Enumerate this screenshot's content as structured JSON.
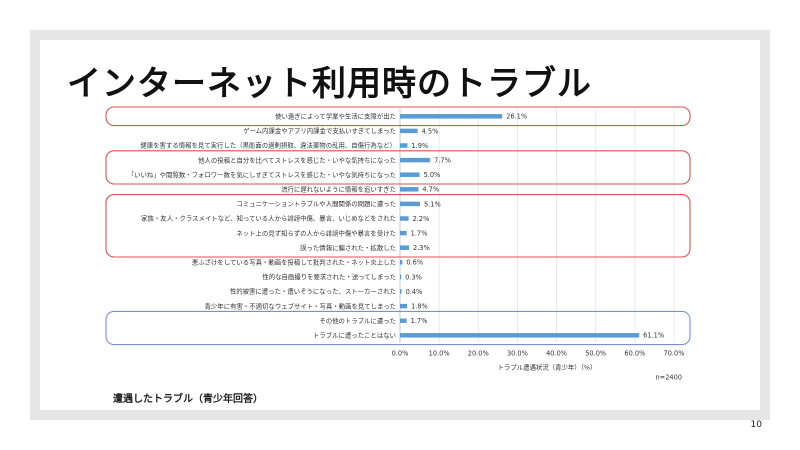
{
  "slide": {
    "title": "インターネット利用時のトラブル",
    "caption": "遭遇したトラブル（青少年回答）",
    "page_number": "10"
  },
  "chart_data": {
    "type": "bar",
    "orientation": "horizontal",
    "categories": [
      "使い過ぎによって学業や生活に支障が出た",
      "ゲーム内課金やアプリ内課金で支払いすぎてしまった",
      "健康を害する情報を見て実行した（黒彫面の過剰摂取、違法薬物の乱用、自傷行為など）",
      "他人の投稿と自分を比べてストレスを感じた・いやな気持ちになった",
      "「いいね」や閲覧数・フォロワー数を気にしすぎてストレスを感じた・いやな気持ちになった",
      "流行に遅れないように情報を追いすぎた",
      "コミュニケーショントラブルや人間関係の問題に遭った",
      "家族・友人・クラスメイトなど、知っている人から誹謗中傷、暴言、いじめなどをされた",
      "ネット上の見ず知らずの人から誹謗中傷や暴言を受けた",
      "誤った情報に騙された・拡散した",
      "悪ふざけをしている写真・動画を投稿して批判された・ネット炎上した",
      "性的な自画撮りを要求された・送ってしまった",
      "性的被害に遭った・遭いそうになった、ストーカーされた",
      "青少年に有害・不適切なウェブサイト・写真・動画を見てしまった",
      "その他のトラブルに遭った",
      "トラブルに遭ったことはない"
    ],
    "values": [
      26.1,
      4.5,
      1.9,
      7.7,
      5.0,
      4.7,
      5.1,
      2.2,
      1.7,
      2.3,
      0.6,
      0.3,
      0.4,
      1.8,
      1.7,
      61.1
    ],
    "value_labels": [
      "26.1%",
      "4.5%",
      "1.9%",
      "7.7%",
      "5.0%",
      "4.7%",
      "5.1%",
      "2.2%",
      "1.7%",
      "2.3%",
      "0.6%",
      "0.3%",
      "0.4%",
      "1.8%",
      "1.7%",
      "61.1%"
    ],
    "tick_labels": [
      "0.0%",
      "10.0%",
      "20.0%",
      "30.0%",
      "40.0%",
      "50.0%",
      "60.0%",
      "70.0%"
    ],
    "xlim": [
      0,
      70
    ],
    "xlabel": "トラブル遭遇状況（青少年）（%）",
    "n_label": "n=2400",
    "grid": true,
    "bar_color": "#5b9bd5",
    "groups": [
      {
        "rows": [
          0
        ],
        "color": "#d9534f"
      },
      {
        "rows": [
          3,
          4
        ],
        "color": "#d9534f"
      },
      {
        "rows": [
          6,
          7,
          8,
          9
        ],
        "color": "#d9534f"
      },
      {
        "rows": [
          14,
          15
        ],
        "color": "#7b8fd6"
      }
    ]
  }
}
